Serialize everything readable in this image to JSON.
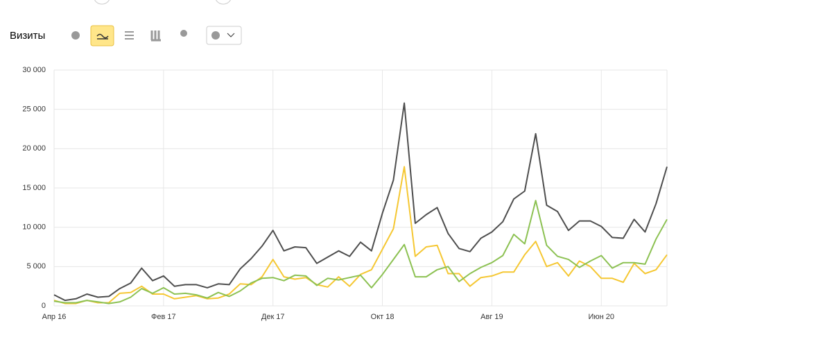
{
  "header": {
    "title": "Визиты"
  },
  "chart_data": {
    "type": "line",
    "categories": [
      "Апр 16",
      null,
      null,
      null,
      null,
      null,
      null,
      null,
      null,
      null,
      "Фев 17",
      null,
      null,
      null,
      null,
      null,
      null,
      null,
      null,
      null,
      "Дек 17",
      null,
      null,
      null,
      null,
      null,
      null,
      null,
      null,
      null,
      "Окт 18",
      null,
      null,
      null,
      null,
      null,
      null,
      null,
      null,
      null,
      "Авг 19",
      null,
      null,
      null,
      null,
      null,
      null,
      null,
      null,
      null,
      "Июн 20",
      null,
      null,
      null,
      null,
      null,
      null
    ],
    "series": [
      {
        "color": "#f5c732",
        "values": [
          700,
          300,
          300,
          700,
          400,
          400,
          1600,
          1700,
          2500,
          1500,
          1500,
          900,
          1100,
          1300,
          900,
          1000,
          1500,
          2800,
          2700,
          3700,
          5900,
          3700,
          3400,
          3600,
          2700,
          2400,
          3700,
          2500,
          4000,
          4600,
          7200,
          9800,
          17700,
          6300,
          7500,
          7700,
          4100,
          4100,
          2500,
          3600,
          3800,
          4300,
          4300,
          6500,
          8200,
          5000,
          5500,
          3800,
          5700,
          5000,
          3500,
          3500,
          3000,
          5400,
          4100,
          4600,
          6500
        ]
      },
      {
        "color": "#8cc152",
        "values": [
          600,
          400,
          400,
          700,
          500,
          300,
          500,
          1100,
          2200,
          1600,
          2300,
          1500,
          1600,
          1400,
          1000,
          1700,
          1200,
          1900,
          2900,
          3500,
          3600,
          3200,
          3900,
          3800,
          2600,
          3500,
          3300,
          3600,
          3900,
          2300,
          4000,
          5900,
          7800,
          3700,
          3700,
          4600,
          5000,
          3100,
          4100,
          4900,
          5500,
          6400,
          9100,
          7900,
          13400,
          7700,
          6300,
          5900,
          4900,
          5700,
          6400,
          4800,
          5500,
          5500,
          5300,
          8500,
          11000
        ]
      },
      {
        "color": "#4d4d4d",
        "values": [
          1400,
          700,
          900,
          1500,
          1100,
          1200,
          2200,
          2900,
          4800,
          3200,
          3800,
          2500,
          2700,
          2700,
          2300,
          2800,
          2700,
          4700,
          6000,
          7600,
          9600,
          7000,
          7500,
          7400,
          5400,
          6200,
          7000,
          6300,
          8100,
          7000,
          11800,
          16000,
          25800,
          10500,
          11600,
          12500,
          9200,
          7300,
          6900,
          8600,
          9400,
          10700,
          13600,
          14600,
          21900,
          12800,
          12000,
          9600,
          10800,
          10800,
          10100,
          8700,
          8600,
          11000,
          9400,
          13000,
          17700
        ]
      }
    ],
    "ylim": [
      0,
      30000
    ],
    "yticks": [
      0,
      {
        "value": 5000,
        "label": "5 000"
      },
      {
        "value": 10000,
        "label": "10 000"
      },
      {
        "value": 15000,
        "label": "15 000"
      },
      {
        "value": 20000,
        "label": "20 000"
      },
      {
        "value": 25000,
        "label": "25 000"
      },
      {
        "value": 30000,
        "label": "30 000"
      }
    ],
    "grid": true
  }
}
